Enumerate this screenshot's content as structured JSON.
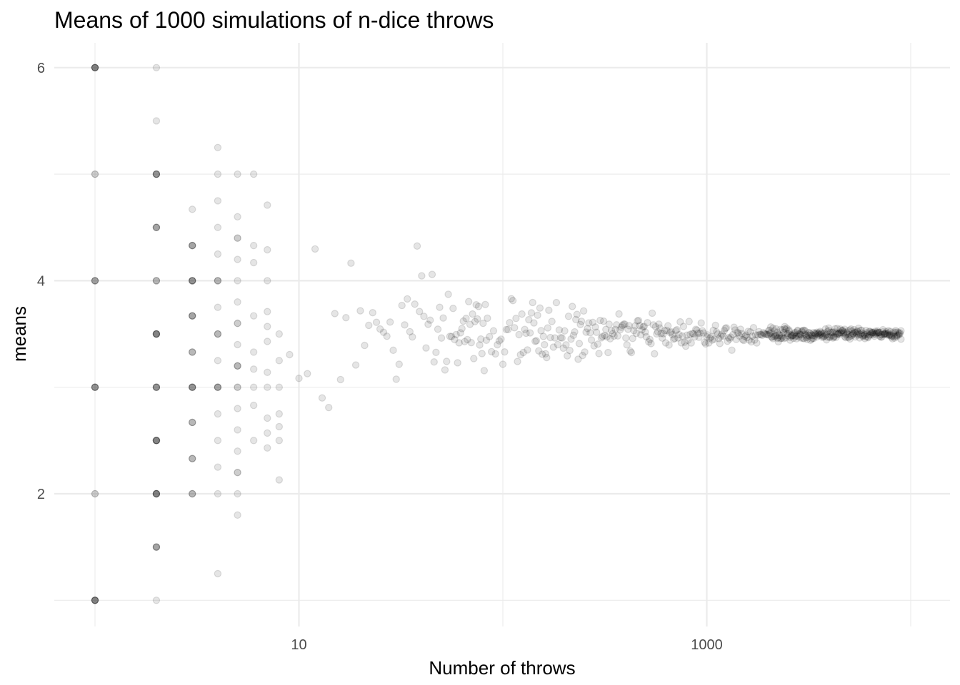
{
  "chart_data": {
    "type": "scatter",
    "title": "Means of 1000 simulations of n-dice throws",
    "xlabel": "Number of throws",
    "ylabel": "means",
    "x_scale": "log10",
    "xlim": [
      0.8,
      10000
    ],
    "ylim": [
      0.8,
      6.2
    ],
    "x_ticks": [
      10,
      1000
    ],
    "x_tick_labels": [
      "10",
      "1000"
    ],
    "x_minor_ticks": [
      1,
      100,
      10000
    ],
    "y_ticks": [
      2,
      4,
      6
    ],
    "y_tick_labels": [
      "2",
      "4",
      "6"
    ],
    "y_minor_ticks": [
      1,
      3,
      5
    ],
    "grid": true,
    "legend": "none",
    "point_color": "#000000",
    "point_alpha": 0.1,
    "points_by_n": [
      {
        "n": 1,
        "means": [
          6,
          6,
          6,
          6,
          6,
          6,
          5,
          5,
          4,
          4,
          4,
          4,
          3,
          3,
          3,
          3,
          3,
          2,
          2,
          1,
          1,
          1,
          1,
          1,
          1
        ]
      },
      {
        "n": 2,
        "means": [
          6,
          5.5,
          5,
          5,
          5,
          5,
          5,
          4.5,
          4.5,
          4.5,
          4.5,
          4,
          4,
          4,
          3.5,
          3.5,
          3.5,
          3.5,
          3.5,
          3.5,
          3,
          3,
          3,
          3,
          3,
          2.5,
          2.5,
          2.5,
          2.5,
          2.5,
          2.5,
          2,
          2,
          2,
          2,
          2,
          2,
          1.5,
          1.5,
          1.5,
          1.5,
          1
        ]
      },
      {
        "n": 3,
        "means": [
          4.67,
          4.33,
          4.33,
          4.33,
          4.33,
          4,
          4,
          4,
          4,
          4,
          3.67,
          3.67,
          3.67,
          3.67,
          3.33,
          3.33,
          3.33,
          3,
          3,
          3,
          3,
          3,
          2.67,
          2.67,
          2.67,
          2.33,
          2.33,
          2.33,
          2,
          2,
          2
        ]
      },
      {
        "n": 4,
        "means": [
          5.25,
          5,
          4.75,
          4.5,
          4.25,
          4,
          4,
          4,
          3.75,
          3.5,
          3.5,
          3.5,
          3.25,
          3,
          3,
          3,
          3,
          2.75,
          2.5,
          2.25,
          2,
          1.25
        ]
      },
      {
        "n": 5,
        "means": [
          5,
          4.6,
          4.4,
          4.4,
          4.2,
          4,
          3.8,
          3.6,
          3.6,
          3.4,
          3.2,
          3.2,
          3.2,
          3,
          3,
          2.8,
          2.6,
          2.4,
          2.2,
          2.2,
          2,
          1.8
        ]
      },
      {
        "n": 6,
        "means": [
          5,
          4.33,
          4.17,
          3.67,
          3.33,
          3.17,
          3,
          2.83,
          2.5
        ]
      },
      {
        "n": 7,
        "means": [
          4.71,
          4.29,
          4,
          3.71,
          3.57,
          3.43,
          3.14,
          3,
          2.71,
          2.57,
          2.43
        ]
      },
      {
        "n": 8,
        "means": [
          3.5,
          3.25,
          3,
          2.75,
          2.63,
          2.5,
          2.13
        ]
      }
    ],
    "trend": {
      "center": 3.5,
      "spread_at_n": [
        {
          "n": 10,
          "sd": 0.54
        },
        {
          "n": 100,
          "sd": 0.171
        },
        {
          "n": 1000,
          "sd": 0.054
        },
        {
          "n": 10000,
          "sd": 0.017
        }
      ]
    }
  }
}
